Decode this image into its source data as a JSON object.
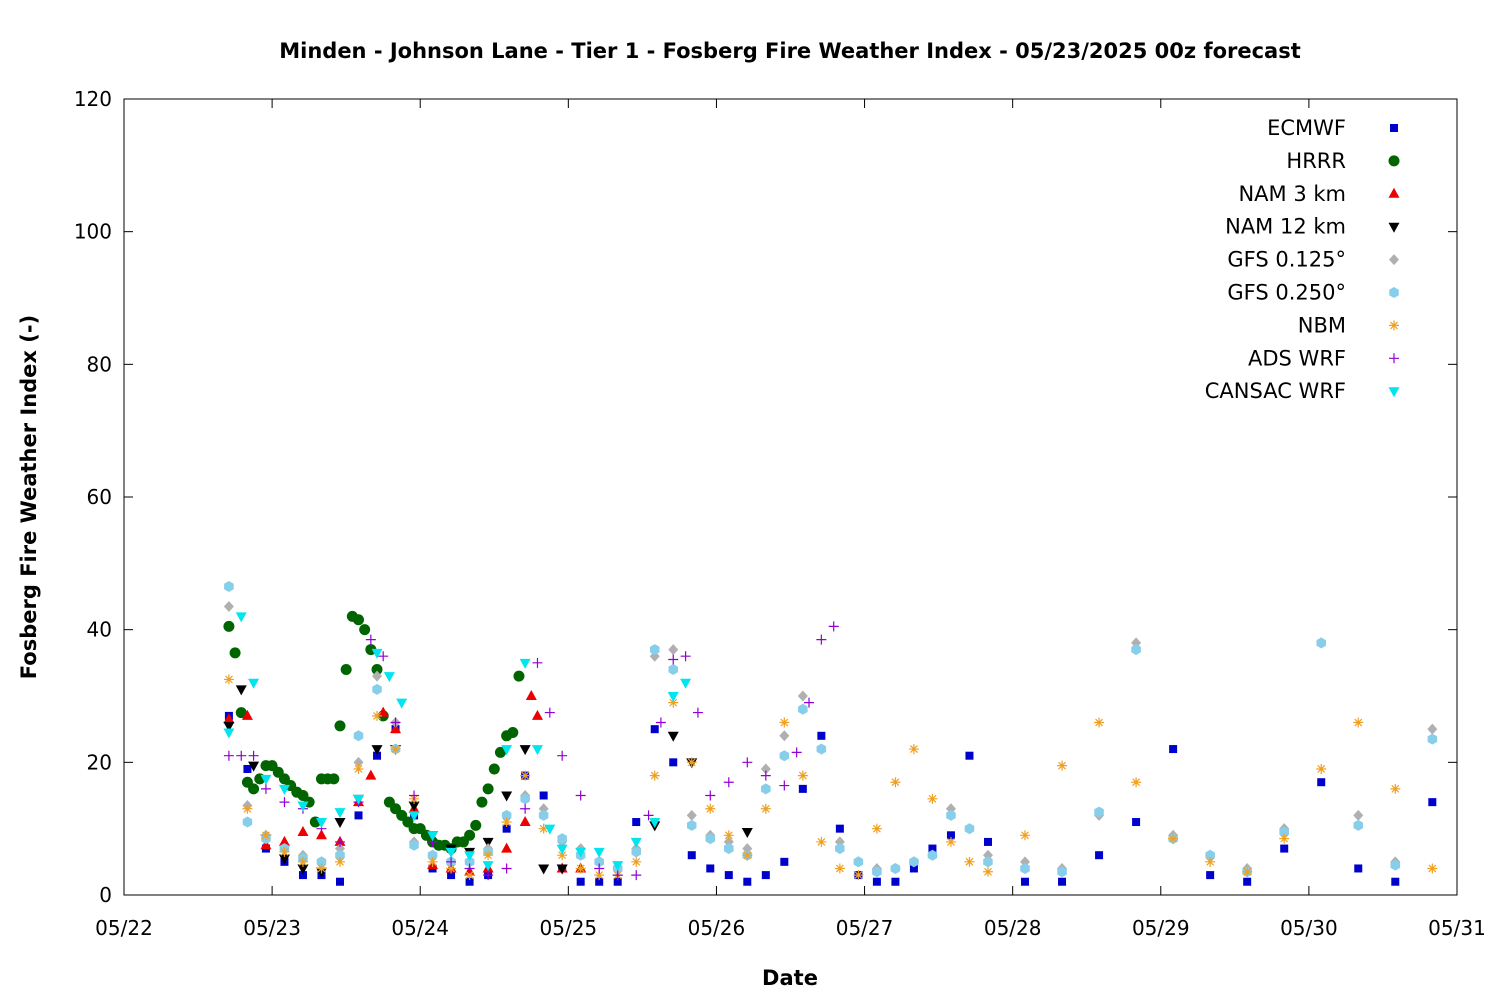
{
  "chart_data": {
    "type": "scatter",
    "title": "Minden - Johnson Lane - Tier 1 - Fosberg Fire Weather Index - 05/23/2025 00z forecast",
    "xlabel": "Date",
    "ylabel": "Fosberg Fire Weather Index (-)",
    "xlim": [
      "2025-05-22",
      "2025-05-31"
    ],
    "ylim": [
      0,
      120
    ],
    "x_tick_labels": [
      "05/22",
      "05/23",
      "05/24",
      "05/25",
      "05/26",
      "05/27",
      "05/28",
      "05/29",
      "05/30",
      "05/31"
    ],
    "y_ticks": [
      0,
      20,
      40,
      60,
      80,
      100,
      120
    ],
    "grid": false,
    "legend_position": "top-right",
    "series": [
      {
        "name": "ECMWF",
        "color": "#0000cc",
        "marker": "square",
        "x": [
          "2025-05-22T17:00",
          "2025-05-22T20:00",
          "2025-05-22T23:00",
          "2025-05-23T02:00",
          "2025-05-23T05:00",
          "2025-05-23T08:00",
          "2025-05-23T11:00",
          "2025-05-23T14:00",
          "2025-05-23T17:00",
          "2025-05-23T20:00",
          "2025-05-23T23:00",
          "2025-05-24T02:00",
          "2025-05-24T05:00",
          "2025-05-24T08:00",
          "2025-05-24T11:00",
          "2025-05-24T14:00",
          "2025-05-24T17:00",
          "2025-05-24T20:00",
          "2025-05-24T23:00",
          "2025-05-25T02:00",
          "2025-05-25T05:00",
          "2025-05-25T08:00",
          "2025-05-25T11:00",
          "2025-05-25T14:00",
          "2025-05-25T17:00",
          "2025-05-25T20:00",
          "2025-05-25T23:00",
          "2025-05-26T02:00",
          "2025-05-26T05:00",
          "2025-05-26T08:00",
          "2025-05-26T11:00",
          "2025-05-26T14:00",
          "2025-05-26T17:00",
          "2025-05-26T20:00",
          "2025-05-26T23:00",
          "2025-05-27T02:00",
          "2025-05-27T05:00",
          "2025-05-27T08:00",
          "2025-05-27T11:00",
          "2025-05-27T14:00",
          "2025-05-27T17:00",
          "2025-05-27T20:00",
          "2025-05-28T02:00",
          "2025-05-28T08:00",
          "2025-05-28T14:00",
          "2025-05-28T20:00",
          "2025-05-29T02:00",
          "2025-05-29T08:00",
          "2025-05-29T14:00",
          "2025-05-29T20:00",
          "2025-05-30T02:00",
          "2025-05-30T08:00",
          "2025-05-30T14:00",
          "2025-05-30T20:00"
        ],
        "y": [
          27,
          19,
          7,
          5,
          3,
          3,
          2,
          12,
          21,
          25,
          12,
          4,
          3,
          2,
          3,
          10,
          18,
          15,
          4,
          2,
          2,
          2,
          11,
          25,
          20,
          6,
          4,
          3,
          2,
          3,
          5,
          16,
          24,
          10,
          3,
          2,
          2,
          4,
          7,
          9,
          21,
          8,
          2,
          2,
          6,
          11,
          22,
          3,
          2,
          7,
          17,
          4,
          2,
          14
        ]
      },
      {
        "name": "HRRR",
        "color": "#006400",
        "marker": "circle",
        "x": [
          "2025-05-22T17:00",
          "2025-05-22T18:00",
          "2025-05-22T19:00",
          "2025-05-22T20:00",
          "2025-05-22T21:00",
          "2025-05-22T22:00",
          "2025-05-22T23:00",
          "2025-05-23T00:00",
          "2025-05-23T01:00",
          "2025-05-23T02:00",
          "2025-05-23T03:00",
          "2025-05-23T04:00",
          "2025-05-23T05:00",
          "2025-05-23T06:00",
          "2025-05-23T07:00",
          "2025-05-23T08:00",
          "2025-05-23T09:00",
          "2025-05-23T10:00",
          "2025-05-23T11:00",
          "2025-05-23T12:00",
          "2025-05-23T13:00",
          "2025-05-23T14:00",
          "2025-05-23T15:00",
          "2025-05-23T16:00",
          "2025-05-23T17:00",
          "2025-05-23T18:00",
          "2025-05-23T19:00",
          "2025-05-23T20:00",
          "2025-05-23T21:00",
          "2025-05-23T22:00",
          "2025-05-23T23:00",
          "2025-05-24T00:00",
          "2025-05-24T01:00",
          "2025-05-24T02:00",
          "2025-05-24T03:00",
          "2025-05-24T04:00",
          "2025-05-24T05:00",
          "2025-05-24T06:00",
          "2025-05-24T07:00",
          "2025-05-24T08:00",
          "2025-05-24T09:00",
          "2025-05-24T10:00",
          "2025-05-24T11:00",
          "2025-05-24T12:00",
          "2025-05-24T13:00",
          "2025-05-24T14:00",
          "2025-05-24T15:00",
          "2025-05-24T16:00"
        ],
        "y": [
          40.5,
          36.5,
          27.5,
          17,
          16,
          17.5,
          19.5,
          19.5,
          18.5,
          17.5,
          16.5,
          15.5,
          15,
          14,
          11,
          17.5,
          17.5,
          17.5,
          25.5,
          34,
          42,
          41.5,
          40,
          37,
          34,
          27,
          14,
          13,
          12,
          11,
          10,
          10,
          9,
          8,
          7.5,
          7.5,
          7,
          8,
          8,
          9,
          10.5,
          14,
          16,
          19,
          21.5,
          24,
          24.5,
          33
        ]
      },
      {
        "name": "NAM 3 km",
        "color": "#ee0000",
        "marker": "triangle-up",
        "x": [
          "2025-05-22T17:00",
          "2025-05-22T20:00",
          "2025-05-22T23:00",
          "2025-05-23T02:00",
          "2025-05-23T05:00",
          "2025-05-23T08:00",
          "2025-05-23T11:00",
          "2025-05-23T14:00",
          "2025-05-23T16:00",
          "2025-05-23T18:00",
          "2025-05-23T20:00",
          "2025-05-23T23:00",
          "2025-05-24T02:00",
          "2025-05-24T05:00",
          "2025-05-24T08:00",
          "2025-05-24T11:00",
          "2025-05-24T14:00",
          "2025-05-24T17:00",
          "2025-05-24T18:00",
          "2025-05-24T19:00",
          "2025-05-24T23:00",
          "2025-05-25T02:00"
        ],
        "y": [
          26.5,
          27,
          7.5,
          8,
          9.5,
          9,
          8,
          14,
          18,
          27.5,
          25,
          13,
          4.5,
          4,
          3.5,
          4,
          7,
          11,
          30,
          27,
          4,
          4
        ]
      },
      {
        "name": "NAM 12 km",
        "color": "#000000",
        "marker": "triangle-down",
        "x": [
          "2025-05-22T17:00",
          "2025-05-22T19:00",
          "2025-05-22T21:00",
          "2025-05-22T23:00",
          "2025-05-23T02:00",
          "2025-05-23T05:00",
          "2025-05-23T08:00",
          "2025-05-23T11:00",
          "2025-05-23T14:00",
          "2025-05-23T17:00",
          "2025-05-23T20:00",
          "2025-05-23T23:00",
          "2025-05-24T02:00",
          "2025-05-24T05:00",
          "2025-05-24T08:00",
          "2025-05-24T11:00",
          "2025-05-24T14:00",
          "2025-05-24T17:00",
          "2025-05-24T20:00",
          "2025-05-24T23:00",
          "2025-05-25T14:00",
          "2025-05-25T17:00",
          "2025-05-25T20:00",
          "2025-05-26T05:00"
        ],
        "y": [
          25.5,
          31,
          19.5,
          8.5,
          5.5,
          4,
          3.5,
          11,
          14.5,
          22,
          22,
          13.5,
          9,
          7,
          6.5,
          8,
          15,
          22,
          4,
          4,
          10.5,
          24,
          20,
          9.5
        ]
      },
      {
        "name": "GFS 0.125°",
        "color": "#b0b0b0",
        "marker": "diamond",
        "x": [
          "2025-05-22T17:00",
          "2025-05-22T20:00",
          "2025-05-22T23:00",
          "2025-05-23T02:00",
          "2025-05-23T05:00",
          "2025-05-23T08:00",
          "2025-05-23T11:00",
          "2025-05-23T14:00",
          "2025-05-23T17:00",
          "2025-05-23T20:00",
          "2025-05-23T23:00",
          "2025-05-24T02:00",
          "2025-05-24T05:00",
          "2025-05-24T08:00",
          "2025-05-24T11:00",
          "2025-05-24T14:00",
          "2025-05-24T17:00",
          "2025-05-24T20:00",
          "2025-05-24T23:00",
          "2025-05-25T02:00",
          "2025-05-25T05:00",
          "2025-05-25T08:00",
          "2025-05-25T11:00",
          "2025-05-25T14:00",
          "2025-05-25T17:00",
          "2025-05-25T20:00",
          "2025-05-25T23:00",
          "2025-05-26T02:00",
          "2025-05-26T05:00",
          "2025-05-26T08:00",
          "2025-05-26T11:00",
          "2025-05-26T14:00",
          "2025-05-26T17:00",
          "2025-05-26T20:00",
          "2025-05-26T23:00",
          "2025-05-27T02:00",
          "2025-05-27T05:00",
          "2025-05-27T08:00",
          "2025-05-27T11:00",
          "2025-05-27T14:00",
          "2025-05-27T17:00",
          "2025-05-27T20:00",
          "2025-05-28T02:00",
          "2025-05-28T08:00",
          "2025-05-28T14:00",
          "2025-05-28T20:00",
          "2025-05-29T02:00",
          "2025-05-29T08:00",
          "2025-05-29T14:00",
          "2025-05-29T20:00",
          "2025-05-30T02:00",
          "2025-05-30T08:00",
          "2025-05-30T14:00",
          "2025-05-30T20:00"
        ],
        "y": [
          43.5,
          13.5,
          9,
          7,
          6,
          5,
          7,
          20,
          33,
          26,
          8,
          6,
          5,
          5,
          7,
          12,
          15,
          13,
          8,
          7,
          5,
          4,
          7,
          36,
          37,
          12,
          9,
          8,
          7,
          19,
          24,
          30,
          22,
          8,
          5,
          4,
          4,
          5,
          6,
          13,
          10,
          6,
          5,
          4,
          12,
          38,
          9,
          6,
          4,
          10,
          38,
          12,
          5,
          25
        ]
      },
      {
        "name": "GFS 0.250°",
        "color": "#87ceeb",
        "marker": "hexagon",
        "x": [
          "2025-05-22T17:00",
          "2025-05-22T20:00",
          "2025-05-22T23:00",
          "2025-05-23T02:00",
          "2025-05-23T05:00",
          "2025-05-23T08:00",
          "2025-05-23T11:00",
          "2025-05-23T14:00",
          "2025-05-23T17:00",
          "2025-05-23T20:00",
          "2025-05-23T23:00",
          "2025-05-24T02:00",
          "2025-05-24T05:00",
          "2025-05-24T08:00",
          "2025-05-24T11:00",
          "2025-05-24T14:00",
          "2025-05-24T17:00",
          "2025-05-24T20:00",
          "2025-05-24T23:00",
          "2025-05-25T02:00",
          "2025-05-25T05:00",
          "2025-05-25T08:00",
          "2025-05-25T11:00",
          "2025-05-25T14:00",
          "2025-05-25T17:00",
          "2025-05-25T20:00",
          "2025-05-25T23:00",
          "2025-05-26T02:00",
          "2025-05-26T05:00",
          "2025-05-26T08:00",
          "2025-05-26T11:00",
          "2025-05-26T14:00",
          "2025-05-26T17:00",
          "2025-05-26T20:00",
          "2025-05-26T23:00",
          "2025-05-27T02:00",
          "2025-05-27T05:00",
          "2025-05-27T08:00",
          "2025-05-27T11:00",
          "2025-05-27T14:00",
          "2025-05-27T17:00",
          "2025-05-27T20:00",
          "2025-05-28T02:00",
          "2025-05-28T08:00",
          "2025-05-28T14:00",
          "2025-05-28T20:00",
          "2025-05-29T02:00",
          "2025-05-29T08:00",
          "2025-05-29T14:00",
          "2025-05-29T20:00",
          "2025-05-30T02:00",
          "2025-05-30T08:00",
          "2025-05-30T14:00",
          "2025-05-30T20:00"
        ],
        "y": [
          46.5,
          11,
          8.5,
          7,
          5.5,
          5,
          6,
          24,
          31,
          22,
          7.5,
          6,
          5,
          5,
          6.5,
          12,
          14.5,
          12,
          8.5,
          6,
          5,
          4,
          6.5,
          37,
          34,
          10.5,
          8.5,
          7,
          6,
          16,
          21,
          28,
          22,
          7,
          5,
          3.5,
          4,
          5,
          6,
          12,
          10,
          5,
          4,
          3.5,
          12.5,
          37,
          8.5,
          6,
          3.5,
          9.5,
          38,
          10.5,
          4.5,
          23.5
        ]
      },
      {
        "name": "NBM",
        "color": "#f0a020",
        "marker": "star",
        "x": [
          "2025-05-22T17:00",
          "2025-05-22T20:00",
          "2025-05-22T23:00",
          "2025-05-23T02:00",
          "2025-05-23T05:00",
          "2025-05-23T08:00",
          "2025-05-23T11:00",
          "2025-05-23T14:00",
          "2025-05-23T17:00",
          "2025-05-23T20:00",
          "2025-05-23T23:00",
          "2025-05-24T02:00",
          "2025-05-24T05:00",
          "2025-05-24T08:00",
          "2025-05-24T11:00",
          "2025-05-24T14:00",
          "2025-05-24T17:00",
          "2025-05-24T20:00",
          "2025-05-24T23:00",
          "2025-05-25T02:00",
          "2025-05-25T05:00",
          "2025-05-25T08:00",
          "2025-05-25T11:00",
          "2025-05-25T14:00",
          "2025-05-25T17:00",
          "2025-05-25T20:00",
          "2025-05-25T23:00",
          "2025-05-26T02:00",
          "2025-05-26T05:00",
          "2025-05-26T08:00",
          "2025-05-26T11:00",
          "2025-05-26T14:00",
          "2025-05-26T17:00",
          "2025-05-26T20:00",
          "2025-05-26T23:00",
          "2025-05-27T02:00",
          "2025-05-27T05:00",
          "2025-05-27T08:00",
          "2025-05-27T11:00",
          "2025-05-27T14:00",
          "2025-05-27T17:00",
          "2025-05-27T20:00",
          "2025-05-28T02:00",
          "2025-05-28T08:00",
          "2025-05-28T14:00",
          "2025-05-28T20:00",
          "2025-05-29T02:00",
          "2025-05-29T08:00",
          "2025-05-29T14:00",
          "2025-05-29T20:00",
          "2025-05-30T02:00",
          "2025-05-30T08:00",
          "2025-05-30T14:00",
          "2025-05-30T20:00"
        ],
        "y": [
          32.5,
          13,
          9,
          6.5,
          5,
          4,
          5,
          19,
          27,
          22,
          14.5,
          5,
          4,
          3,
          6,
          11,
          18,
          10,
          6,
          4,
          3,
          3,
          5,
          18,
          29,
          20,
          13,
          9,
          6,
          13,
          26,
          18,
          8,
          4,
          3,
          10,
          17,
          22,
          14.5,
          8,
          5,
          3.5,
          9,
          19.5,
          26,
          17,
          8.5,
          5,
          3.5,
          8.5,
          19,
          26,
          16,
          4
        ]
      },
      {
        "name": "ADS WRF",
        "color": "#9400d3",
        "marker": "plus",
        "x": [
          "2025-05-22T17:00",
          "2025-05-22T19:00",
          "2025-05-22T21:00",
          "2025-05-22T23:00",
          "2025-05-23T02:00",
          "2025-05-23T05:00",
          "2025-05-23T08:00",
          "2025-05-23T11:00",
          "2025-05-23T14:00",
          "2025-05-23T16:00",
          "2025-05-23T18:00",
          "2025-05-23T20:00",
          "2025-05-23T23:00",
          "2025-05-24T02:00",
          "2025-05-24T05:00",
          "2025-05-24T08:00",
          "2025-05-24T11:00",
          "2025-05-24T14:00",
          "2025-05-24T17:00",
          "2025-05-24T19:00",
          "2025-05-24T21:00",
          "2025-05-24T23:00",
          "2025-05-25T02:00",
          "2025-05-25T05:00",
          "2025-05-25T08:00",
          "2025-05-25T11:00",
          "2025-05-25T13:00",
          "2025-05-25T15:00",
          "2025-05-25T17:00",
          "2025-05-25T19:00",
          "2025-05-25T21:00",
          "2025-05-25T23:00",
          "2025-05-26T02:00",
          "2025-05-26T05:00",
          "2025-05-26T08:00",
          "2025-05-26T11:00",
          "2025-05-26T13:00",
          "2025-05-26T15:00",
          "2025-05-26T17:00",
          "2025-05-26T19:00"
        ],
        "y": [
          21,
          21,
          21,
          16,
          14,
          13,
          10,
          8,
          14,
          38.5,
          36,
          26,
          15,
          8,
          5,
          4,
          3,
          4,
          13,
          35,
          27.5,
          21,
          15,
          4,
          3,
          3,
          12,
          26,
          35.5,
          36,
          27.5,
          15,
          17,
          20,
          18,
          16.5,
          21.5,
          29,
          38.5,
          40.5
        ]
      },
      {
        "name": "CANSAC WRF",
        "color": "#00e5ee",
        "marker": "triangle-down",
        "x": [
          "2025-05-22T17:00",
          "2025-05-22T19:00",
          "2025-05-22T21:00",
          "2025-05-22T23:00",
          "2025-05-23T02:00",
          "2025-05-23T05:00",
          "2025-05-23T08:00",
          "2025-05-23T11:00",
          "2025-05-23T14:00",
          "2025-05-23T17:00",
          "2025-05-23T19:00",
          "2025-05-23T21:00",
          "2025-05-23T23:00",
          "2025-05-24T02:00",
          "2025-05-24T05:00",
          "2025-05-24T08:00",
          "2025-05-24T11:00",
          "2025-05-24T14:00",
          "2025-05-24T17:00",
          "2025-05-24T19:00",
          "2025-05-24T21:00",
          "2025-05-24T23:00",
          "2025-05-25T02:00",
          "2025-05-25T05:00",
          "2025-05-25T08:00",
          "2025-05-25T11:00",
          "2025-05-25T14:00",
          "2025-05-25T17:00",
          "2025-05-25T19:00"
        ],
        "y": [
          24.5,
          42,
          32,
          17.5,
          16,
          13.5,
          11,
          12.5,
          14.5,
          36.5,
          33,
          29,
          12,
          9,
          6.5,
          6,
          4.5,
          22,
          35,
          22,
          10,
          7,
          6.5,
          6.5,
          4.5,
          8,
          11,
          30,
          32
        ]
      }
    ]
  }
}
